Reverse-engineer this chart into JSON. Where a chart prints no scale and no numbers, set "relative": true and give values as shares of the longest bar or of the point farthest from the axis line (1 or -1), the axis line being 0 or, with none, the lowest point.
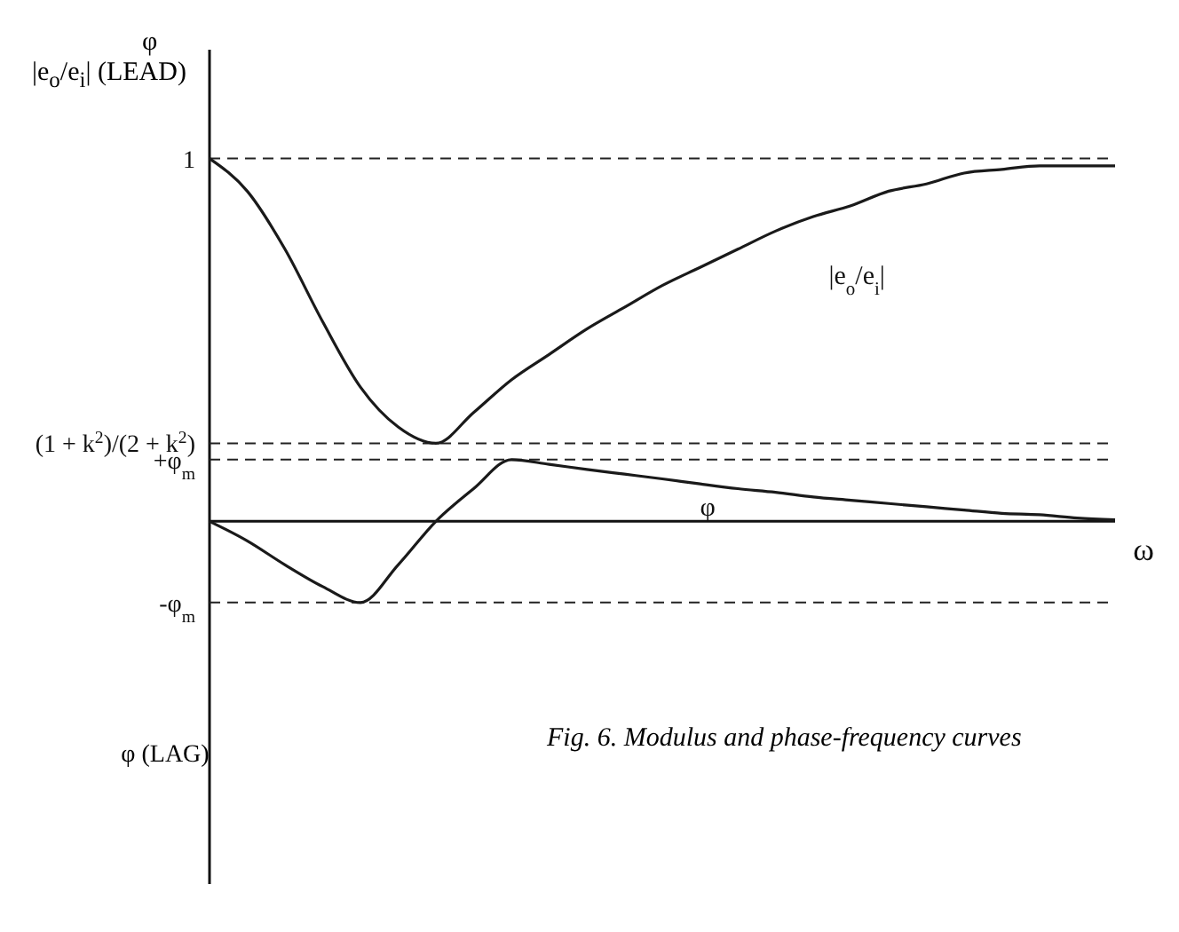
{
  "chart_data": {
    "type": "line",
    "relative": true,
    "xlabel": "ω",
    "ylabel": "|e$_{o}$/e$_{i}$| (LEAD)",
    "line_style": "solid",
    "marker": "none",
    "categories": [
      null,
      null,
      null,
      null,
      null,
      null,
      null,
      null,
      null,
      null,
      null,
      null,
      null,
      null,
      null,
      null,
      null,
      null,
      null,
      null,
      null,
      null,
      null,
      null,
      null
    ],
    "series": [
      {
        "name": "|e$_{o}$/e$_{i}$|",
        "color": "#1a1a1a",
        "values": [
          1.0,
          0.91,
          0.75,
          0.55,
          0.37,
          0.26,
          0.215,
          0.3,
          0.39,
          0.46,
          0.53,
          0.59,
          0.65,
          0.7,
          0.75,
          0.8,
          0.84,
          0.87,
          0.91,
          0.93,
          0.96,
          0.97,
          0.98,
          0.98,
          0.98
        ]
      },
      {
        "name": "φ",
        "color": "#1a1a1a",
        "values": [
          0,
          -0.054,
          -0.12,
          -0.18,
          -0.224,
          -0.12,
          0.0,
          0.09,
          0.17,
          0.157,
          0.143,
          0.13,
          0.117,
          0.103,
          0.09,
          0.08,
          0.067,
          0.058,
          0.049,
          0.04,
          0.031,
          0.022,
          0.018,
          0.009,
          0.004
        ]
      }
    ],
    "ref_lines": [
      {
        "axis": "y",
        "value": 1,
        "label": "1",
        "line_style": "dashed"
      },
      {
        "axis": "y",
        "value": 0.215,
        "label": "(1 + k$^{2}$)/(2 + k$^{2}$)",
        "line_style": "dashed"
      },
      {
        "axis": "y",
        "value": 0.17,
        "label": "+φ$_{m}$",
        "line_style": "dashed"
      },
      {
        "axis": "y",
        "value": -0.224,
        "label": "-φ$_{m}$",
        "line_style": "dashed"
      }
    ],
    "annotations": [
      "φ",
      "φ (LAG)",
      "Fig. 6.   Modulus and phase-frequency curves"
    ]
  }
}
